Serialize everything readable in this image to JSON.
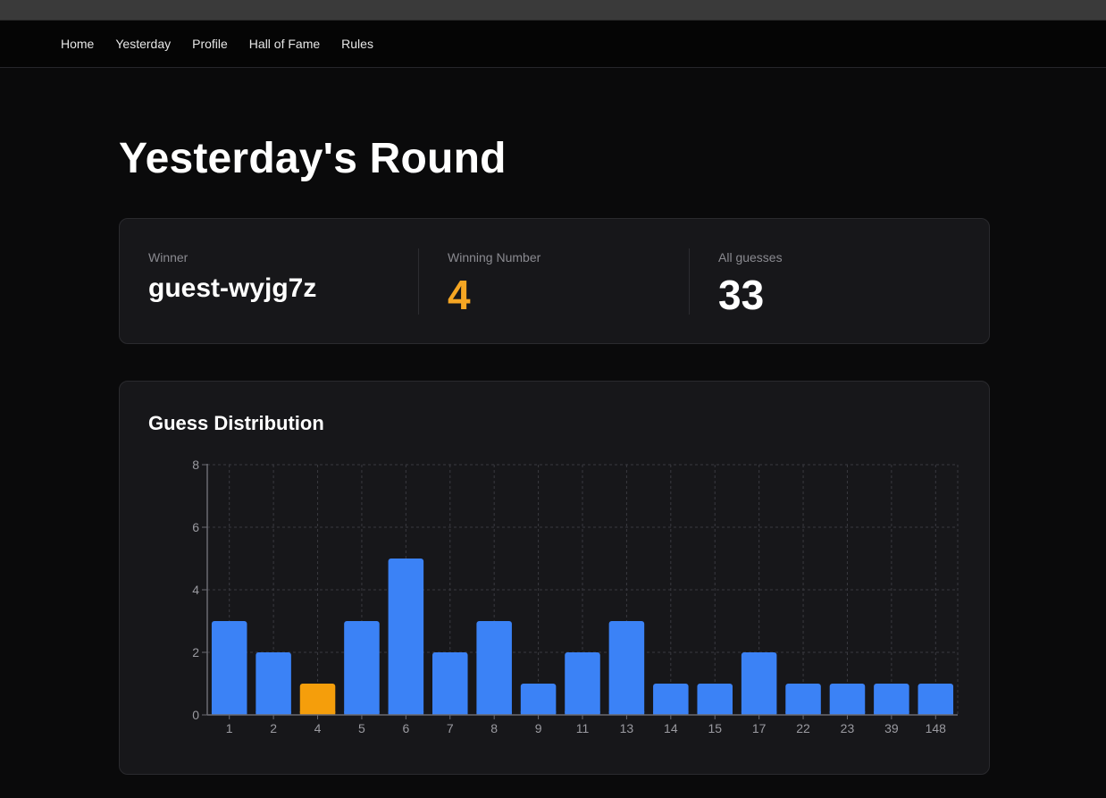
{
  "nav": {
    "items": [
      {
        "label": "Home",
        "name": "nav-home"
      },
      {
        "label": "Yesterday",
        "name": "nav-yesterday"
      },
      {
        "label": "Profile",
        "name": "nav-profile"
      },
      {
        "label": "Hall of Fame",
        "name": "nav-hall-of-fame"
      },
      {
        "label": "Rules",
        "name": "nav-rules"
      }
    ]
  },
  "page": {
    "title": "Yesterday's Round"
  },
  "stats": {
    "winner_label": "Winner",
    "winner_value": "guest-wyjg7z",
    "winning_number_label": "Winning Number",
    "winning_number_value": "4",
    "all_guesses_label": "All guesses",
    "all_guesses_value": "33"
  },
  "colors": {
    "bar": "#3b82f6",
    "highlight": "#f59e0b",
    "accent": "#f5a623"
  },
  "chart": {
    "title": "Guess Distribution"
  },
  "chart_data": {
    "type": "bar",
    "title": "Guess Distribution",
    "categories": [
      "1",
      "2",
      "4",
      "5",
      "6",
      "7",
      "8",
      "9",
      "11",
      "13",
      "14",
      "15",
      "17",
      "22",
      "23",
      "39",
      "148"
    ],
    "values": [
      3,
      2,
      1,
      3,
      5,
      2,
      3,
      1,
      2,
      3,
      1,
      1,
      2,
      1,
      1,
      1,
      1
    ],
    "highlight_category": "4",
    "ylim": [
      0,
      8
    ],
    "yticks": [
      0,
      2,
      4,
      6,
      8
    ],
    "grid": true,
    "legend": "none"
  }
}
